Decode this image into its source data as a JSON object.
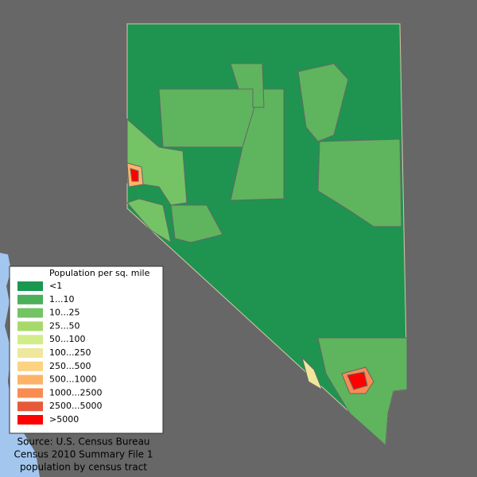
{
  "legend": {
    "title": "Population per sq. mile",
    "items": [
      {
        "label": "<1",
        "color": "#1a9850"
      },
      {
        "label": "1...10",
        "color": "#4caf5a"
      },
      {
        "label": "10...25",
        "color": "#74c365"
      },
      {
        "label": "25...50",
        "color": "#a6d96a"
      },
      {
        "label": "50...100",
        "color": "#d3ec8a"
      },
      {
        "label": "100...250",
        "color": "#eee79c"
      },
      {
        "label": "250...500",
        "color": "#fdd281"
      },
      {
        "label": "500...1000",
        "color": "#fdb367"
      },
      {
        "label": "1000...2500",
        "color": "#f88c52"
      },
      {
        "label": "2500...5000",
        "color": "#e65a3a"
      },
      {
        "label": ">5000",
        "color": "#ff0000"
      }
    ]
  },
  "source": {
    "lines": [
      "Source: U.S. Census Bureau",
      "Census 2010 Summary File 1",
      "population by census tract"
    ]
  }
}
